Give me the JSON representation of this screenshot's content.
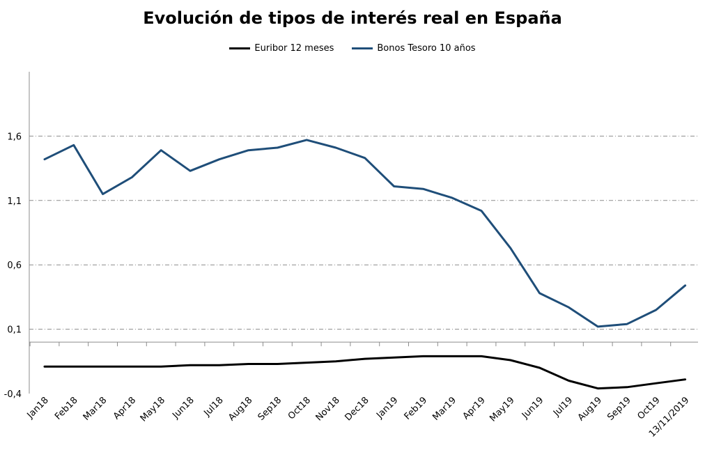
{
  "chart_data": {
    "type": "line",
    "title": "Evolución de tipos de interés real en España",
    "xlabel": "",
    "ylabel": "",
    "categories": [
      "Jan18",
      "Feb18",
      "Mar18",
      "Apr18",
      "May18",
      "Jun18",
      "Jul18",
      "Aug18",
      "Sep18",
      "Oct18",
      "Nov18",
      "Dec18",
      "Jan19",
      "Feb19",
      "Mar19",
      "Apr19",
      "May19",
      "Jun19",
      "Jul19",
      "Aug19",
      "Sep19",
      "Oct19",
      "13/11/2019"
    ],
    "yticks": [
      -0.4,
      0.1,
      0.6,
      1.1,
      1.6
    ],
    "ytick_labels": [
      "-0,4",
      "0,1",
      "0,6",
      "1,1",
      "1,6"
    ],
    "ylim": [
      -0.4,
      2.1
    ],
    "grid": "horizontal dash-dot",
    "legend_position": "top",
    "series": [
      {
        "name": "Euribor 12 meses",
        "color": "#000000",
        "values": [
          -0.19,
          -0.19,
          -0.19,
          -0.19,
          -0.19,
          -0.18,
          -0.18,
          -0.17,
          -0.17,
          -0.16,
          -0.15,
          -0.13,
          -0.12,
          -0.11,
          -0.11,
          -0.11,
          -0.14,
          -0.2,
          -0.3,
          -0.36,
          -0.35,
          -0.32,
          -0.29
        ]
      },
      {
        "name": "Bonos Tesoro 10 años",
        "color": "#1f4e79",
        "values": [
          1.42,
          1.53,
          1.15,
          1.28,
          1.49,
          1.33,
          1.42,
          1.49,
          1.51,
          1.57,
          1.51,
          1.43,
          1.21,
          1.19,
          1.12,
          1.02,
          0.73,
          0.38,
          0.27,
          0.12,
          0.14,
          0.25,
          0.44
        ]
      }
    ]
  }
}
